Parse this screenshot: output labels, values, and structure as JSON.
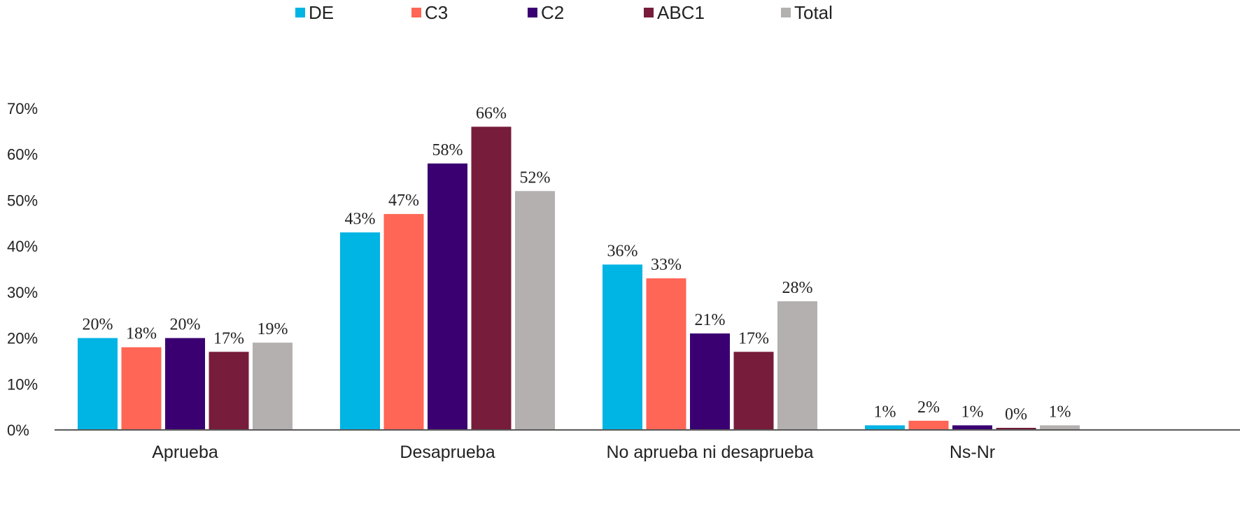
{
  "chart_data": {
    "type": "bar",
    "categories": [
      "Aprueba",
      "Desaprueba",
      "No aprueba ni desaprueba",
      "Ns-Nr"
    ],
    "series": [
      {
        "name": "DE",
        "color": "#00B4E4",
        "values": [
          0.2,
          0.43,
          0.36,
          0.01
        ],
        "labels": [
          "20%",
          "43%",
          "36%",
          "1%"
        ]
      },
      {
        "name": "C3",
        "color": "#FF6655",
        "values": [
          0.18,
          0.47,
          0.33,
          0.02
        ],
        "labels": [
          "18%",
          "47%",
          "33%",
          "2%"
        ]
      },
      {
        "name": "C2",
        "color": "#3A0071",
        "values": [
          0.2,
          0.58,
          0.21,
          0.01
        ],
        "labels": [
          "20%",
          "58%",
          "21%",
          "1%"
        ]
      },
      {
        "name": "ABC1",
        "color": "#771C3A",
        "values": [
          0.17,
          0.66,
          0.17,
          0.0
        ],
        "labels": [
          "17%",
          "66%",
          "17%",
          "0%"
        ]
      },
      {
        "name": "Total",
        "color": "#B5B0B0",
        "values": [
          0.19,
          0.52,
          0.28,
          0.01
        ],
        "labels": [
          "19%",
          "52%",
          "28%",
          "1%"
        ]
      }
    ],
    "ylim": [
      0,
      0.7
    ],
    "yticks": [
      "0%",
      "10%",
      "20%",
      "30%",
      "40%",
      "50%",
      "60%",
      "70%"
    ],
    "grid": false,
    "legend_position": "top"
  }
}
